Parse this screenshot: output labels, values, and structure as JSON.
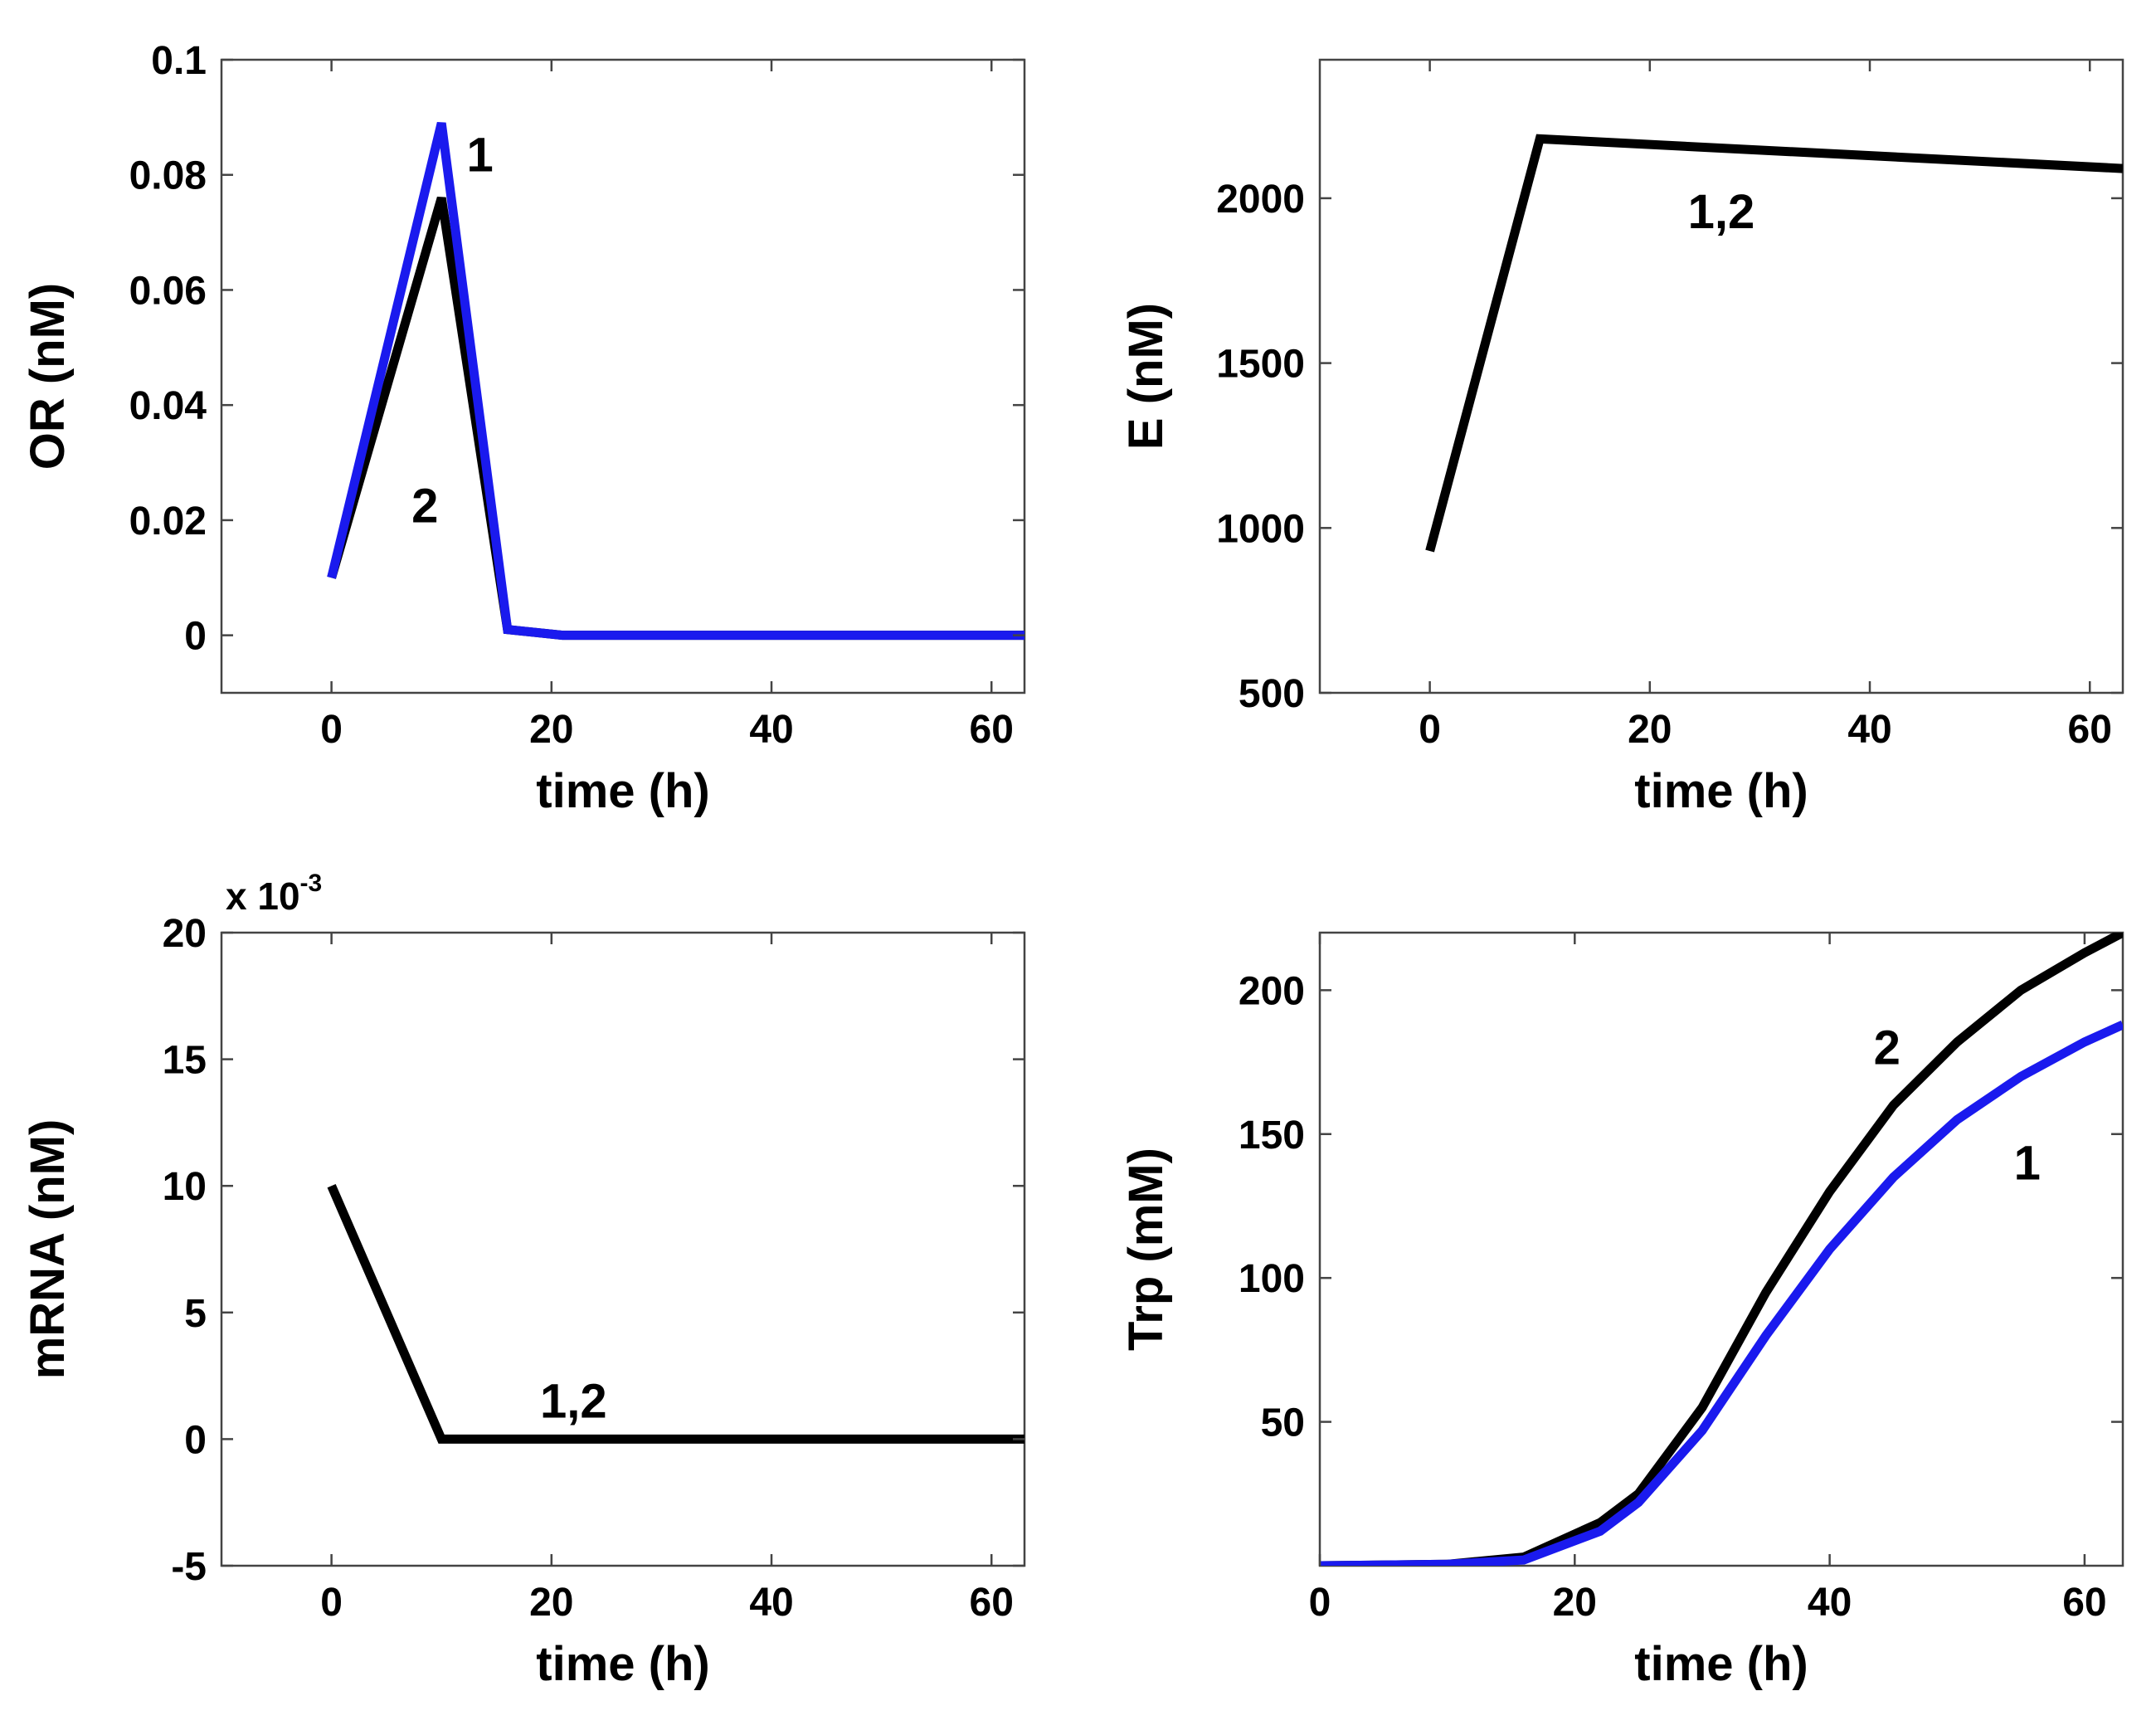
{
  "colors": {
    "series_1": "#1a1aee",
    "series_2": "#000000",
    "axes": "#444444"
  },
  "chart_data": [
    {
      "type": "line",
      "id": "or",
      "title": "",
      "xlabel": "time (h)",
      "ylabel": "OR (nM)",
      "xlim": [
        -10,
        63
      ],
      "ylim": [
        -0.01,
        0.1
      ],
      "xticks": [
        0,
        20,
        40,
        60
      ],
      "xtick_labels": [
        "0",
        "20",
        "40",
        "60"
      ],
      "yticks": [
        0,
        0.02,
        0.04,
        0.06,
        0.08,
        0.1
      ],
      "ytick_labels": [
        "0",
        "0.02",
        "0.04",
        "0.06",
        "0.08",
        "0.1"
      ],
      "series": [
        {
          "name": "2",
          "color": "#000000",
          "x": [
            0,
            10,
            16,
            21,
            63
          ],
          "y": [
            0.01,
            0.076,
            0.001,
            0,
            0
          ]
        },
        {
          "name": "1",
          "color": "#1a1aee",
          "x": [
            0,
            10,
            16,
            21,
            63
          ],
          "y": [
            0.01,
            0.089,
            0.001,
            0,
            0
          ]
        }
      ],
      "annotations": [
        {
          "text": "1",
          "x": 13.5,
          "y": 0.0835
        },
        {
          "text": "2",
          "x": 8.5,
          "y": 0.0225
        }
      ]
    },
    {
      "type": "line",
      "id": "e",
      "title": "",
      "xlabel": "time (h)",
      "ylabel": "E (nM)",
      "xlim": [
        -10,
        63
      ],
      "ylim": [
        500,
        2420
      ],
      "xticks": [
        0,
        20,
        40,
        60
      ],
      "xtick_labels": [
        "0",
        "20",
        "40",
        "60"
      ],
      "yticks": [
        500,
        1000,
        1500,
        2000
      ],
      "ytick_labels": [
        "500",
        "1000",
        "1500",
        "2000"
      ],
      "series": [
        {
          "name": "1,2",
          "color": "#000000",
          "x": [
            0,
            10,
            63
          ],
          "y": [
            930,
            2180,
            2090
          ]
        }
      ],
      "annotations": [
        {
          "text": "1,2",
          "x": 26.5,
          "y": 1960
        }
      ]
    },
    {
      "type": "line",
      "id": "mrna",
      "title": "",
      "xlabel": "time (h)",
      "ylabel": "mRNA (nM)",
      "scale_label": "x 10",
      "scale_exponent": "-3",
      "xlim": [
        -10,
        63
      ],
      "ylim": [
        -5,
        20
      ],
      "xticks": [
        0,
        20,
        40,
        60
      ],
      "xtick_labels": [
        "0",
        "20",
        "40",
        "60"
      ],
      "yticks": [
        -5,
        0,
        5,
        10,
        15,
        20
      ],
      "ytick_labels": [
        "-5",
        "0",
        "5",
        "10",
        "15",
        "20"
      ],
      "series": [
        {
          "name": "1,2",
          "color": "#000000",
          "x": [
            0,
            10,
            63
          ],
          "y": [
            10,
            0,
            0
          ]
        }
      ],
      "annotations": [
        {
          "text": "1,2",
          "x": 22,
          "y": 1.5
        }
      ]
    },
    {
      "type": "line",
      "id": "trp",
      "title": "",
      "xlabel": "time (h)",
      "ylabel": "Trp (mM)",
      "xlim": [
        0,
        63
      ],
      "ylim": [
        0,
        220
      ],
      "xticks": [
        0,
        20,
        40,
        60
      ],
      "xtick_labels": [
        "0",
        "20",
        "40",
        "60"
      ],
      "yticks": [
        50,
        100,
        150,
        200
      ],
      "ytick_labels": [
        "50",
        "100",
        "150",
        "200"
      ],
      "series": [
        {
          "name": "2",
          "color": "#000000",
          "x": [
            0,
            10,
            16,
            22,
            25,
            30,
            35,
            40,
            45,
            50,
            55,
            60,
            63
          ],
          "y": [
            0,
            0.5,
            3,
            15,
            25,
            55,
            95,
            130,
            160,
            182,
            200,
            213,
            220
          ]
        },
        {
          "name": "1",
          "color": "#1a1aee",
          "x": [
            0,
            10,
            16,
            22,
            25,
            30,
            35,
            40,
            45,
            50,
            55,
            60,
            63
          ],
          "y": [
            0,
            0.5,
            2,
            12,
            22,
            47,
            80,
            110,
            135,
            155,
            170,
            182,
            188
          ]
        }
      ],
      "annotations": [
        {
          "text": "2",
          "x": 44.5,
          "y": 180
        },
        {
          "text": "1",
          "x": 55.5,
          "y": 140
        }
      ]
    }
  ]
}
